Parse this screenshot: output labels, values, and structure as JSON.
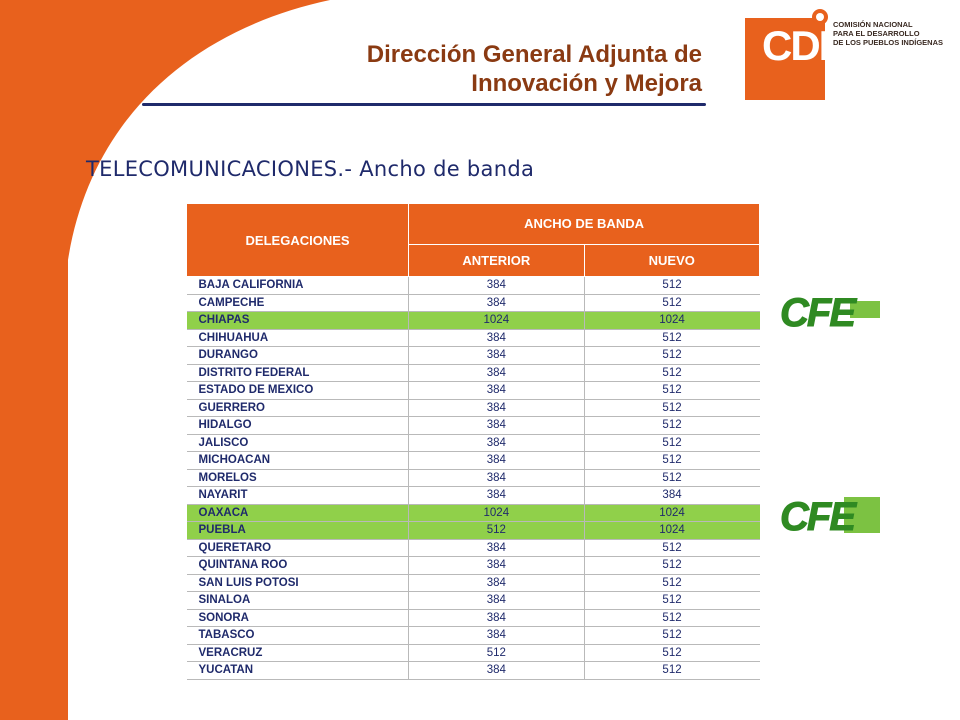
{
  "header": {
    "title_line1": "Dirección General Adjunta de",
    "title_line2": "Innovación y Mejora"
  },
  "logo": {
    "letters": "CDI",
    "org_line1": "COMISIÓN NACIONAL",
    "org_line2": "PARA EL DESARROLLO",
    "org_line3": "DE LOS PUEBLOS INDÍGENAS"
  },
  "section_title": "TELECOMUNICACIONES.- Ancho de banda",
  "table": {
    "col_delegaciones": "DELEGACIONES",
    "col_ancho": "ANCHO DE BANDA",
    "col_anterior": "ANTERIOR",
    "col_nuevo": "NUEVO",
    "rows": [
      {
        "name": "BAJA CALIFORNIA",
        "anterior": "384",
        "nuevo": "512"
      },
      {
        "name": "CAMPECHE",
        "anterior": "384",
        "nuevo": "512"
      },
      {
        "name": "CHIAPAS",
        "anterior": "1024",
        "nuevo": "1024",
        "highlight": true
      },
      {
        "name": "CHIHUAHUA",
        "anterior": "384",
        "nuevo": "512"
      },
      {
        "name": "DURANGO",
        "anterior": "384",
        "nuevo": "512"
      },
      {
        "name": "DISTRITO FEDERAL",
        "anterior": "384",
        "nuevo": "512"
      },
      {
        "name": "ESTADO DE MEXICO",
        "anterior": "384",
        "nuevo": "512"
      },
      {
        "name": "GUERRERO",
        "anterior": "384",
        "nuevo": "512"
      },
      {
        "name": "HIDALGO",
        "anterior": "384",
        "nuevo": "512"
      },
      {
        "name": "JALISCO",
        "anterior": "384",
        "nuevo": "512"
      },
      {
        "name": "MICHOACAN",
        "anterior": "384",
        "nuevo": "512"
      },
      {
        "name": "MORELOS",
        "anterior": "384",
        "nuevo": "512"
      },
      {
        "name": "NAYARIT",
        "anterior": "384",
        "nuevo": "384"
      },
      {
        "name": "OAXACA",
        "anterior": "1024",
        "nuevo": "1024",
        "highlight": true
      },
      {
        "name": "PUEBLA",
        "anterior": "512",
        "nuevo": "1024",
        "highlight": true
      },
      {
        "name": "QUERETARO",
        "anterior": "384",
        "nuevo": "512"
      },
      {
        "name": "QUINTANA ROO",
        "anterior": "384",
        "nuevo": "512"
      },
      {
        "name": "SAN LUIS POTOSI",
        "anterior": "384",
        "nuevo": "512"
      },
      {
        "name": "SINALOA",
        "anterior": "384",
        "nuevo": "512"
      },
      {
        "name": "SONORA",
        "anterior": "384",
        "nuevo": "512"
      },
      {
        "name": "TABASCO",
        "anterior": "384",
        "nuevo": "512"
      },
      {
        "name": "VERACRUZ",
        "anterior": "512",
        "nuevo": "512"
      },
      {
        "name": "YUCATAN",
        "anterior": "384",
        "nuevo": "512"
      }
    ]
  },
  "cfe_logos": [
    "CFE",
    "CFE"
  ],
  "colors": {
    "accent_orange": "#e8611d",
    "highlight_green": "#90d04a",
    "title_brown": "#8a3a12",
    "text_navy": "#1f2a6b"
  }
}
